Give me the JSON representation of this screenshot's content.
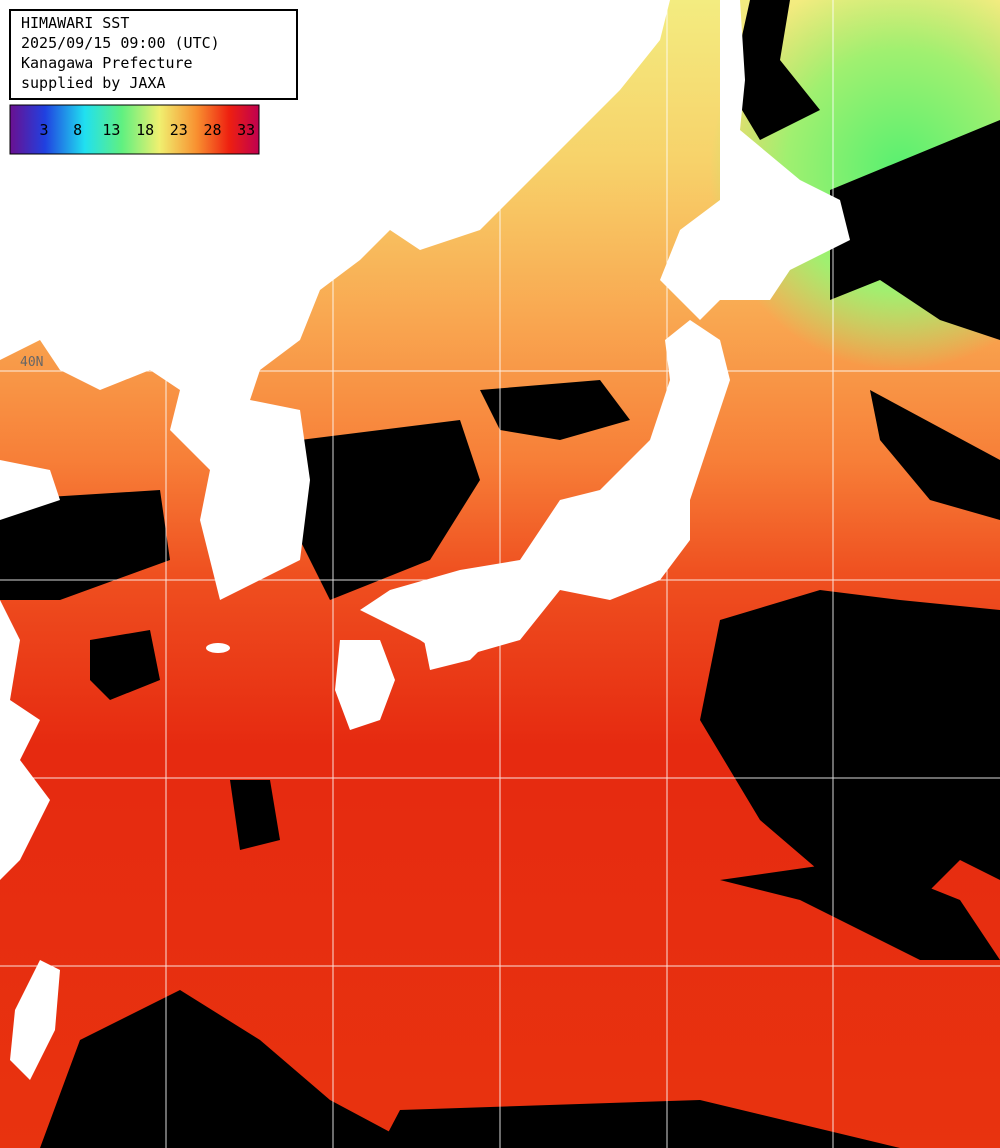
{
  "header": {
    "lines": [
      "HIMAWARI SST",
      "2025/09/15 09:00 (UTC)",
      "Kanagawa Prefecture",
      "supplied by JAXA"
    ]
  },
  "legend": {
    "ticks": [
      "3",
      "8",
      "13",
      "18",
      "23",
      "28",
      "33"
    ]
  },
  "grid_labels": [
    "40N"
  ]
}
